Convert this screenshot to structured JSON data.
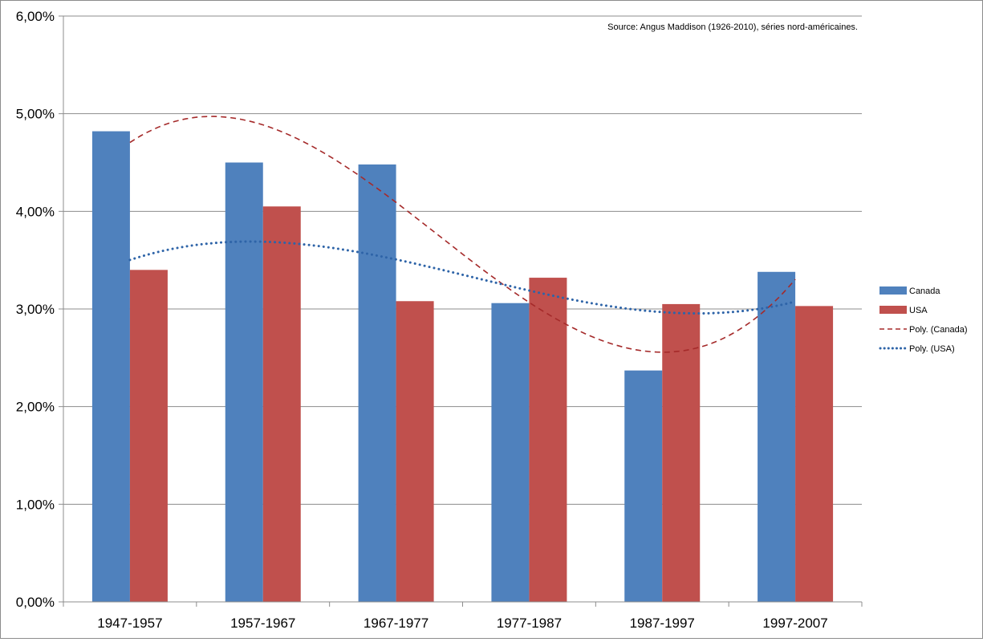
{
  "chart_data": {
    "type": "bar",
    "title": "",
    "source_note": "Source:  Angus Maddison  (1926-2010), séries nord-américaines.",
    "categories": [
      "1947-1957",
      "1957-1967",
      "1967-1977",
      "1977-1987",
      "1987-1997",
      "1997-2007"
    ],
    "series": [
      {
        "name": "Canada",
        "color": "#4f81bd",
        "values": [
          4.82,
          4.5,
          4.48,
          3.06,
          2.37,
          3.38
        ]
      },
      {
        "name": "USA",
        "color": "#c0504d",
        "values": [
          3.4,
          4.05,
          3.08,
          3.32,
          3.05,
          3.03
        ]
      }
    ],
    "trendlines": [
      {
        "name": "Poly. (Canada)",
        "color": "#a52a2a",
        "style": "dashed",
        "of_series": "Canada",
        "order": 3
      },
      {
        "name": "Poly. (USA)",
        "color": "#2e64a8",
        "style": "dotted",
        "of_series": "USA",
        "order": 3
      }
    ],
    "ylim": [
      0,
      6
    ],
    "yticks": [
      0,
      1,
      2,
      3,
      4,
      5,
      6
    ],
    "ytick_labels": [
      "0,00%",
      "1,00%",
      "2,00%",
      "3,00%",
      "4,00%",
      "5,00%",
      "6,00%"
    ],
    "grid": true,
    "legend_position": "right"
  }
}
